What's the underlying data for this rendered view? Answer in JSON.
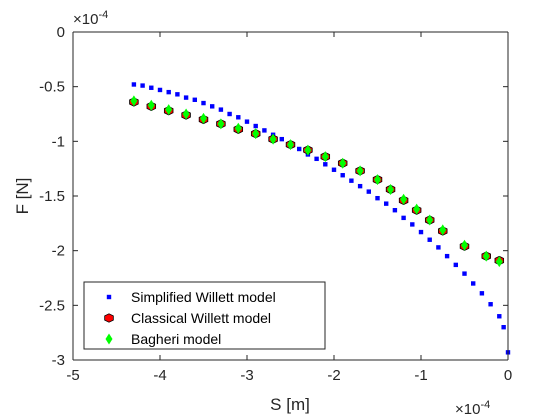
{
  "chart_data": {
    "type": "scatter",
    "xlabel": "S [m]",
    "ylabel": "F [N]",
    "x_multiplier": "×10",
    "x_exponent": "-4",
    "y_multiplier": "×10",
    "y_exponent": "-4",
    "xlim": [
      -5,
      0
    ],
    "ylim": [
      -3,
      0
    ],
    "xticks": [
      "-5",
      "-4",
      "-3",
      "-2",
      "-1",
      "0"
    ],
    "yticks": [
      "0",
      "-0.5",
      "-1",
      "-1.5",
      "-2",
      "-2.5",
      "-3"
    ],
    "legend_position": "bottom-left",
    "series": [
      {
        "name": "Simplified Willett model",
        "marker": "square",
        "color": "#0000ff",
        "points": [
          [
            -4.3,
            -0.48
          ],
          [
            -4.2,
            -0.49
          ],
          [
            -4.1,
            -0.51
          ],
          [
            -4.0,
            -0.53
          ],
          [
            -3.9,
            -0.55
          ],
          [
            -3.8,
            -0.57
          ],
          [
            -3.7,
            -0.6
          ],
          [
            -3.6,
            -0.62
          ],
          [
            -3.5,
            -0.65
          ],
          [
            -3.4,
            -0.68
          ],
          [
            -3.3,
            -0.71
          ],
          [
            -3.2,
            -0.75
          ],
          [
            -3.1,
            -0.78
          ],
          [
            -3.0,
            -0.82
          ],
          [
            -2.9,
            -0.86
          ],
          [
            -2.8,
            -0.9
          ],
          [
            -2.7,
            -0.94
          ],
          [
            -2.6,
            -0.98
          ],
          [
            -2.5,
            -1.03
          ],
          [
            -2.4,
            -1.07
          ],
          [
            -2.3,
            -1.12
          ],
          [
            -2.2,
            -1.16
          ],
          [
            -2.1,
            -1.21
          ],
          [
            -2.0,
            -1.26
          ],
          [
            -1.9,
            -1.31
          ],
          [
            -1.8,
            -1.36
          ],
          [
            -1.7,
            -1.41
          ],
          [
            -1.6,
            -1.46
          ],
          [
            -1.5,
            -1.52
          ],
          [
            -1.4,
            -1.57
          ],
          [
            -1.3,
            -1.63
          ],
          [
            -1.2,
            -1.7
          ],
          [
            -1.1,
            -1.76
          ],
          [
            -1.0,
            -1.83
          ],
          [
            -0.9,
            -1.9
          ],
          [
            -0.8,
            -1.97
          ],
          [
            -0.7,
            -2.05
          ],
          [
            -0.6,
            -2.13
          ],
          [
            -0.5,
            -2.21
          ],
          [
            -0.4,
            -2.3
          ],
          [
            -0.3,
            -2.39
          ],
          [
            -0.2,
            -2.49
          ],
          [
            -0.1,
            -2.6
          ],
          [
            -0.05,
            -2.7
          ],
          [
            0.0,
            -2.93
          ]
        ]
      },
      {
        "name": "Classical Willett model",
        "marker": "hexagon",
        "color": "#ff0000",
        "points": [
          [
            -4.3,
            -0.64
          ],
          [
            -4.1,
            -0.68
          ],
          [
            -3.9,
            -0.72
          ],
          [
            -3.7,
            -0.76
          ],
          [
            -3.5,
            -0.8
          ],
          [
            -3.3,
            -0.84
          ],
          [
            -3.1,
            -0.89
          ],
          [
            -2.9,
            -0.93
          ],
          [
            -2.7,
            -0.98
          ],
          [
            -2.5,
            -1.03
          ],
          [
            -2.3,
            -1.08
          ],
          [
            -2.1,
            -1.14
          ],
          [
            -1.9,
            -1.2
          ],
          [
            -1.7,
            -1.27
          ],
          [
            -1.5,
            -1.35
          ],
          [
            -1.35,
            -1.44
          ],
          [
            -1.2,
            -1.54
          ],
          [
            -1.05,
            -1.63
          ],
          [
            -0.9,
            -1.72
          ],
          [
            -0.75,
            -1.82
          ],
          [
            -0.5,
            -1.96
          ],
          [
            -0.25,
            -2.05
          ],
          [
            -0.1,
            -2.09
          ]
        ]
      },
      {
        "name": "Bagheri model",
        "marker": "diamond",
        "color": "#00ff00",
        "points": [
          [
            -4.3,
            -0.63
          ],
          [
            -4.1,
            -0.67
          ],
          [
            -3.9,
            -0.71
          ],
          [
            -3.7,
            -0.75
          ],
          [
            -3.5,
            -0.79
          ],
          [
            -3.3,
            -0.84
          ],
          [
            -3.1,
            -0.88
          ],
          [
            -2.9,
            -0.93
          ],
          [
            -2.7,
            -0.98
          ],
          [
            -2.5,
            -1.03
          ],
          [
            -2.3,
            -1.08
          ],
          [
            -2.1,
            -1.14
          ],
          [
            -1.9,
            -1.2
          ],
          [
            -1.7,
            -1.27
          ],
          [
            -1.5,
            -1.35
          ],
          [
            -1.35,
            -1.44
          ],
          [
            -1.2,
            -1.53
          ],
          [
            -1.05,
            -1.62
          ],
          [
            -0.9,
            -1.72
          ],
          [
            -0.75,
            -1.81
          ],
          [
            -0.5,
            -1.95
          ],
          [
            -0.25,
            -2.05
          ],
          [
            -0.1,
            -2.1
          ]
        ]
      }
    ]
  }
}
